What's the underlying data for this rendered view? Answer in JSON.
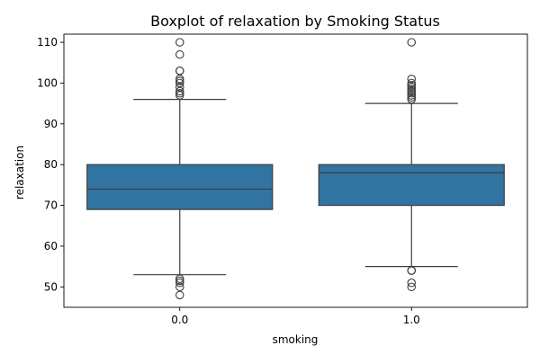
{
  "chart_data": {
    "type": "boxplot",
    "title": "Boxplot of relaxation by Smoking Status",
    "xlabel": "smoking",
    "ylabel": "relaxation",
    "categories": [
      "0.0",
      "1.0"
    ],
    "ylim": [
      45,
      112
    ],
    "yticks": [
      50,
      60,
      70,
      80,
      90,
      100,
      110
    ],
    "grid": false,
    "box_color": "#3274a1",
    "line_color": "#3d3d3d",
    "boxes": [
      {
        "category": "0.0",
        "whisker_low": 53,
        "q1": 69,
        "median": 74,
        "q3": 80,
        "whisker_high": 96,
        "outliers": [
          97,
          97.5,
          98,
          99,
          100,
          100.5,
          101,
          103,
          103,
          107,
          110,
          52,
          51.5,
          51,
          50,
          48
        ]
      },
      {
        "category": "1.0",
        "whisker_low": 55,
        "q1": 70,
        "median": 78,
        "q3": 80,
        "whisker_high": 95,
        "outliers": [
          96,
          96.5,
          97,
          97.5,
          98,
          98.5,
          99,
          99.5,
          100,
          101,
          110,
          54,
          54,
          51,
          50
        ]
      }
    ]
  }
}
